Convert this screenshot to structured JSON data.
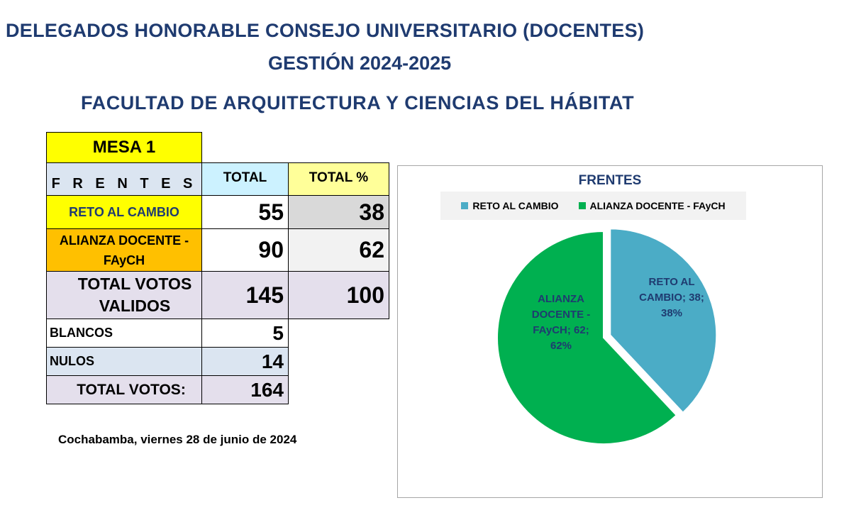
{
  "titles": {
    "line1": "DELEGADOS HONORABLE CONSEJO UNIVERSITARIO (DOCENTES)",
    "line2": "GESTIÓN 2024-2025",
    "line3": "FACULTAD DE ARQUITECTURA Y CIENCIAS DEL HÁBITAT"
  },
  "table": {
    "mesa": "MESA  1",
    "frentes_header": "F R E N T E S",
    "total_header": "TOTAL",
    "total_pct_header": "TOTAL %",
    "rows": [
      {
        "label": "RETO AL CAMBIO",
        "total": "55",
        "pct": "38"
      },
      {
        "label": "ALIANZA DOCENTE - FAyCH",
        "total": "90",
        "pct": "62"
      }
    ],
    "valid": {
      "label": "TOTAL VOTOS VALIDOS",
      "total": "145",
      "pct": "100"
    },
    "blancos": {
      "label": "BLANCOS",
      "value": "5"
    },
    "nulos": {
      "label": "NULOS",
      "value": "14"
    },
    "total_votos": {
      "label": "TOTAL VOTOS:",
      "value": "164"
    }
  },
  "footer": "Cochabamba, viernes 28 de junio de 2024",
  "colors": {
    "title": "#1f3b70",
    "yellow": "#ffff00",
    "orange": "#ffc000",
    "lightblue_header": "#ccf2ff",
    "lightyellow_header": "#ffff99",
    "lavender": "#e4dfec",
    "lightgray": "#dbe5f1",
    "reto": "#4bacc6",
    "alianza": "#00b050"
  },
  "chart_data": {
    "type": "pie",
    "title": "FRENTES",
    "legend_position": "top",
    "categories": [
      "RETO AL CAMBIO",
      "ALIANZA DOCENTE - FAyCH"
    ],
    "values": [
      38,
      62
    ],
    "data_labels": [
      [
        "RETO AL",
        "CAMBIO; 38;",
        "38%"
      ],
      [
        "ALIANZA",
        "DOCENTE -",
        "FAyCH; 62;",
        "62%"
      ]
    ],
    "colors": [
      "#4bacc6",
      "#00b050"
    ],
    "exploded": "RETO AL CAMBIO"
  }
}
